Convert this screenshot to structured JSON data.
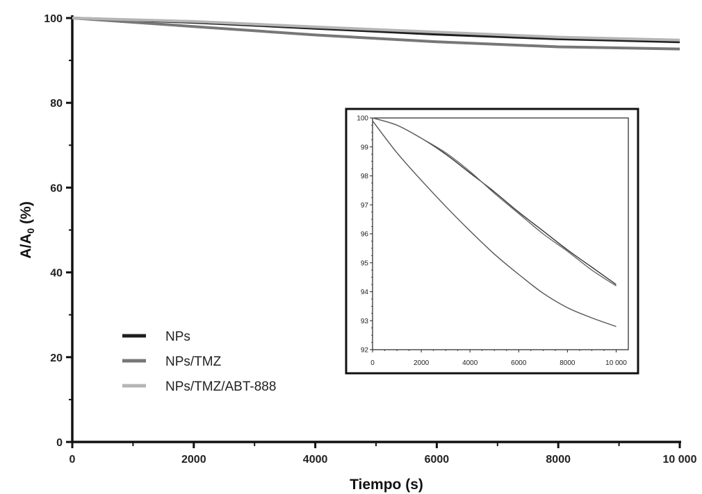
{
  "chart_data": [
    {
      "type": "line",
      "xlabel": "Tiempo (s)",
      "ylabel": "A/A",
      "ylabel_subscript": "0",
      "ylabel_suffix": " (%)",
      "xlim": [
        0,
        10000
      ],
      "ylim": [
        0,
        100
      ],
      "x_ticks": [
        0,
        2000,
        4000,
        6000,
        8000,
        10000
      ],
      "x_tick_labels": [
        "0",
        "2000",
        "4000",
        "6000",
        "8000",
        "10 000"
      ],
      "y_ticks": [
        0,
        20,
        40,
        60,
        80,
        100
      ],
      "y_tick_labels": [
        "0",
        "20",
        "40",
        "60",
        "80",
        "100"
      ],
      "grid": false,
      "legend_position": "lower-left",
      "series": [
        {
          "name": "NPs",
          "color": "#1e1e1e",
          "x": [
            0,
            2000,
            4000,
            6000,
            8000,
            10000
          ],
          "y": [
            100,
            99.0,
            97.6,
            96.2,
            95.1,
            94.4
          ]
        },
        {
          "name": "NPs/TMZ",
          "color": "#777777",
          "x": [
            0,
            2000,
            4000,
            6000,
            8000,
            10000
          ],
          "y": [
            100,
            98.0,
            96.0,
            94.4,
            93.2,
            92.7
          ]
        },
        {
          "name": "NPs/TMZ/ABT-888",
          "color": "#b5b5b5",
          "x": [
            0,
            2000,
            4000,
            6000,
            8000,
            10000
          ],
          "y": [
            100,
            99.2,
            97.9,
            96.7,
            95.5,
            94.8
          ]
        }
      ]
    },
    {
      "type": "line",
      "role": "inset",
      "xlabel": "",
      "ylabel": "",
      "xlim": [
        0,
        10500
      ],
      "ylim": [
        92,
        100
      ],
      "x_ticks": [
        0,
        2000,
        4000,
        6000,
        8000,
        10000
      ],
      "x_tick_labels": [
        "0",
        "2000",
        "4000",
        "6000",
        "8000",
        "10 000"
      ],
      "y_ticks": [
        92,
        93,
        94,
        95,
        96,
        97,
        98,
        99,
        100
      ],
      "y_tick_labels": [
        "92",
        "93",
        "94",
        "95",
        "96",
        "97",
        "98",
        "99",
        "100"
      ],
      "grid": false,
      "series": [
        {
          "color": "#333333",
          "x": [
            0,
            1000,
            2000,
            3000,
            4000,
            5000,
            6000,
            7000,
            8000,
            9000,
            10000
          ],
          "y": [
            100,
            99.75,
            99.3,
            98.75,
            98.1,
            97.45,
            96.75,
            96.1,
            95.45,
            94.85,
            94.25
          ]
        },
        {
          "color": "#666666",
          "x": [
            0,
            1000,
            2000,
            3000,
            4000,
            5000,
            6000,
            7000,
            8000,
            9000,
            10000
          ],
          "y": [
            100,
            99.75,
            99.3,
            98.8,
            98.15,
            97.4,
            96.7,
            96.0,
            95.4,
            94.75,
            94.2
          ]
        },
        {
          "color": "#555555",
          "x": [
            0,
            1000,
            2000,
            3000,
            4000,
            5000,
            6000,
            7000,
            8000,
            9000,
            10000
          ],
          "y": [
            99.9,
            98.8,
            97.85,
            96.95,
            96.1,
            95.3,
            94.6,
            93.95,
            93.45,
            93.1,
            92.8
          ]
        }
      ]
    }
  ]
}
